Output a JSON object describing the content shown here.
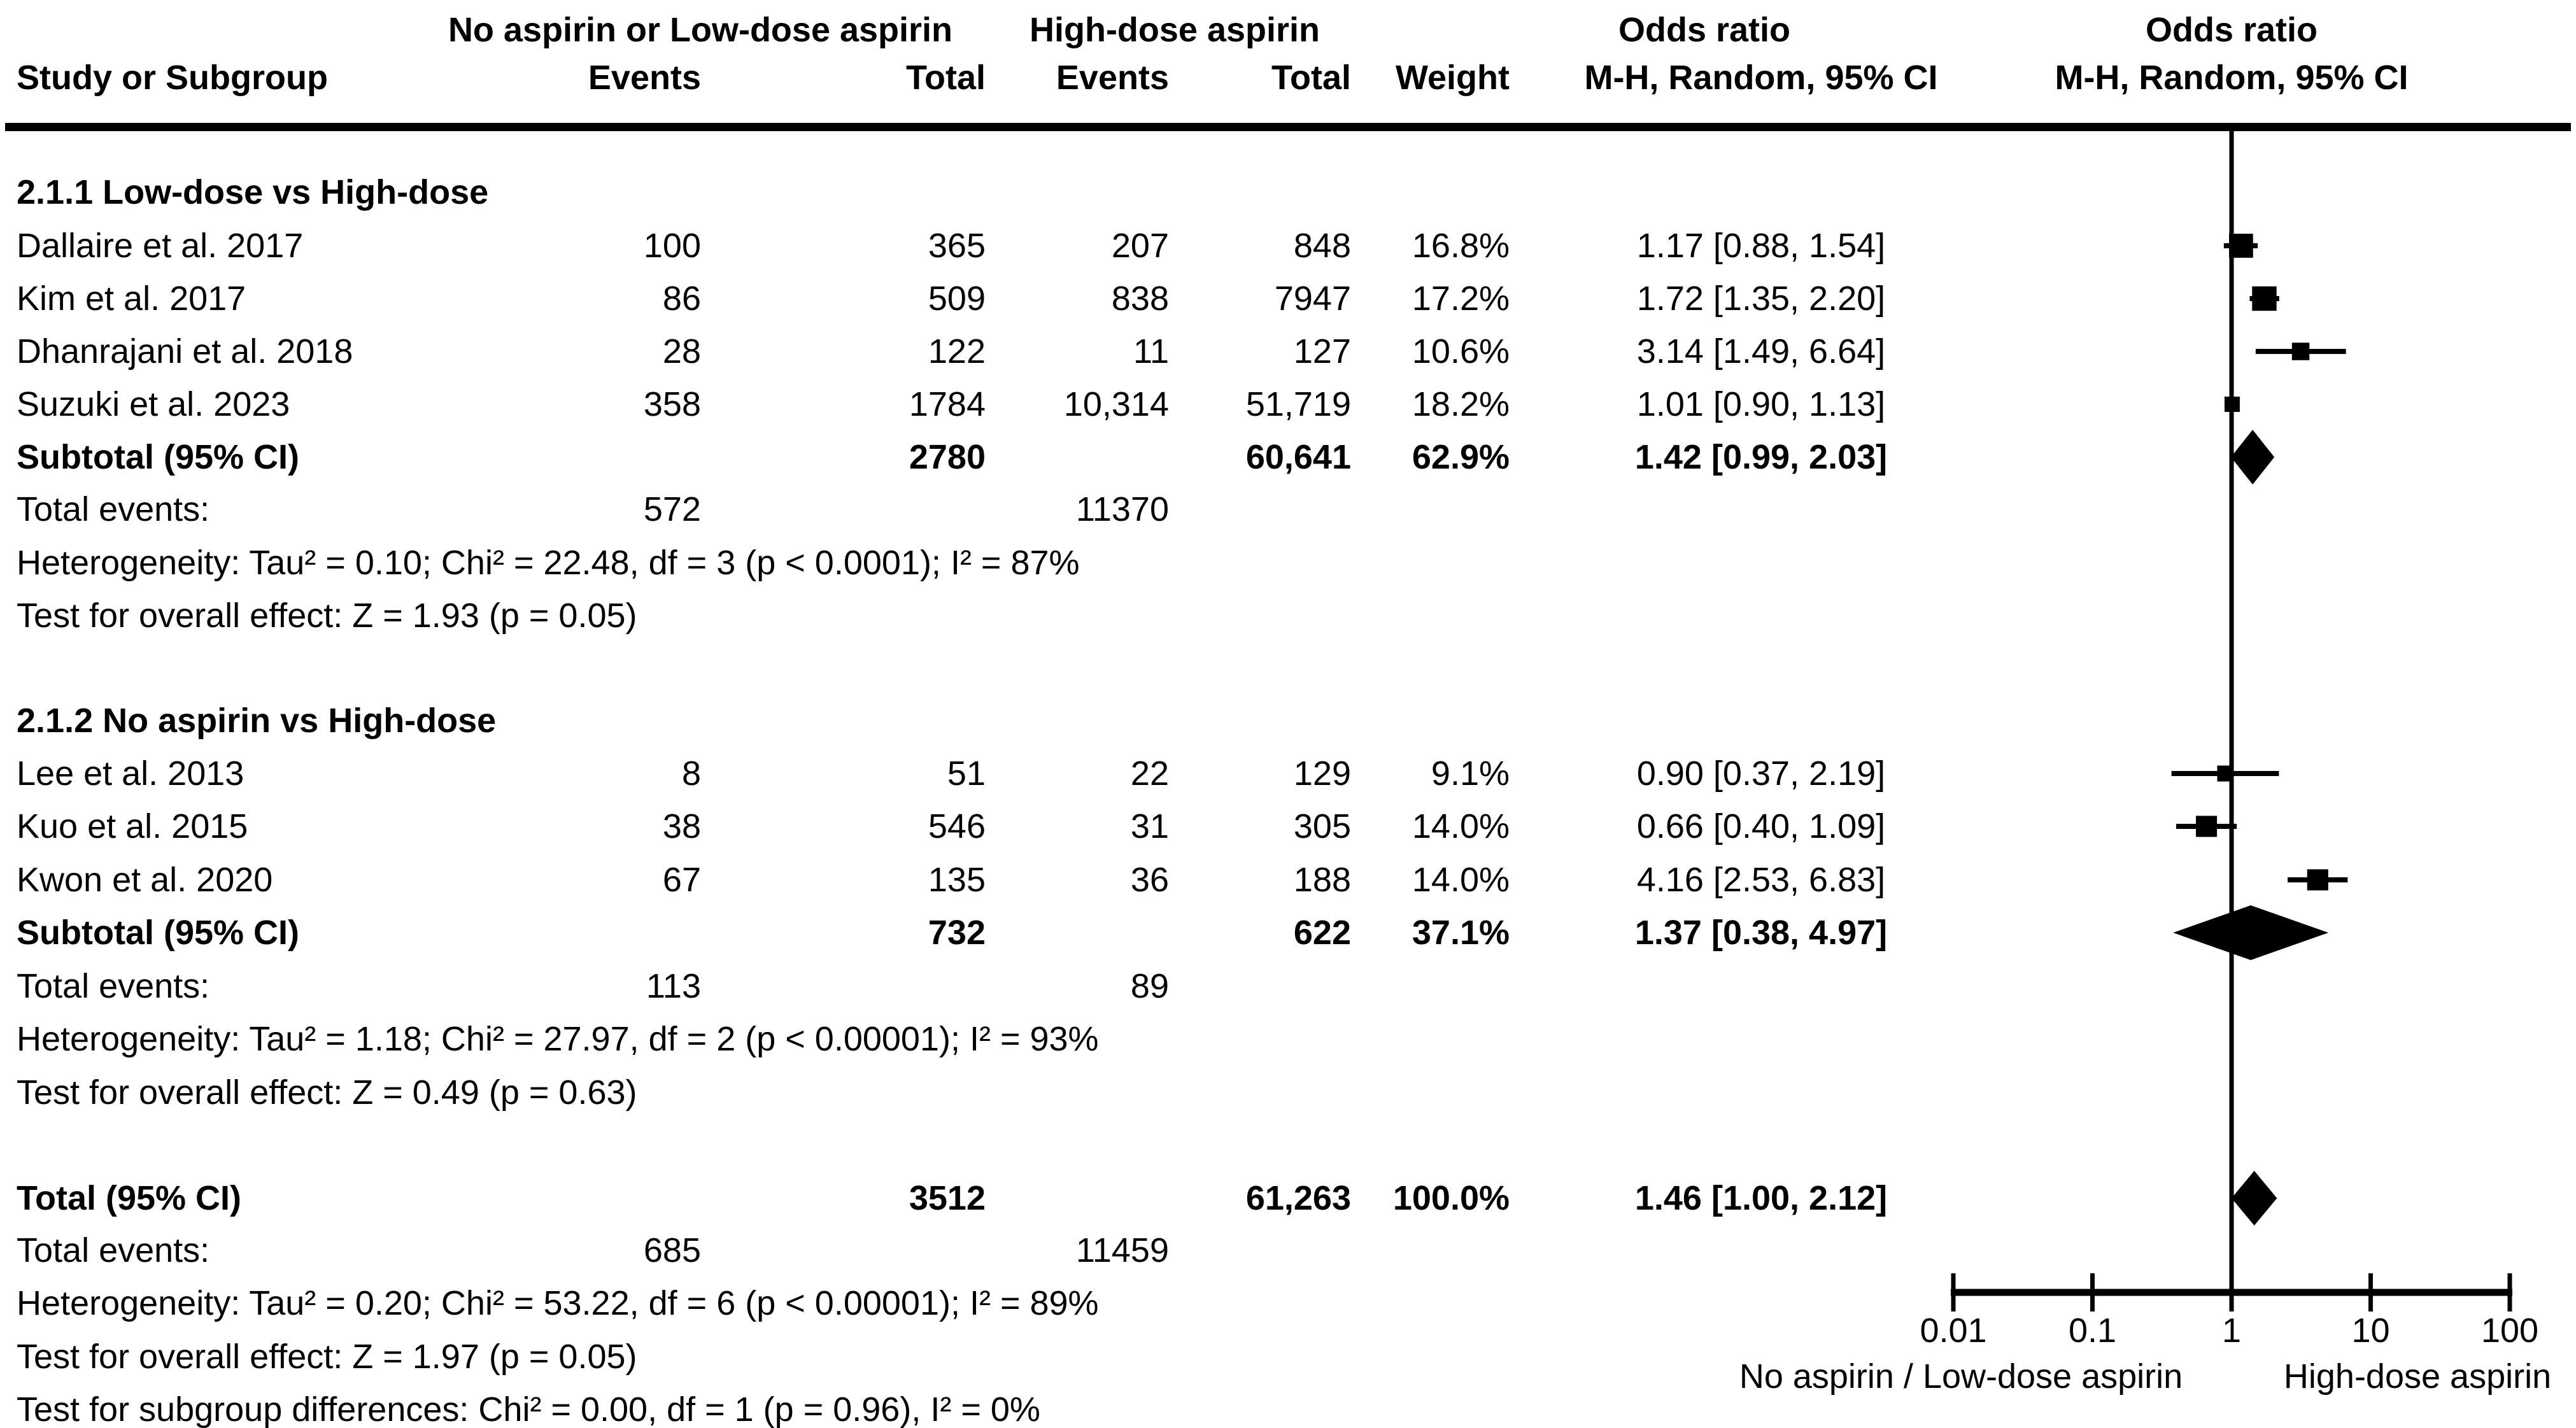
{
  "header": {
    "col_study": "Study or Subgroup",
    "group1": "No aspirin or Low-dose aspirin",
    "group2": "High-dose aspirin",
    "events": "Events",
    "total": "Total",
    "weight": "Weight",
    "or_title": "Odds ratio",
    "or_method": "M-H, Random, 95% CI"
  },
  "colors": {
    "ink": "#000000",
    "background": "#ffffff"
  },
  "chart_data": {
    "type": "forest",
    "effect_measure": "Odds ratio, M-H, Random, 95% CI",
    "x_scale": "log",
    "x_ticks": [
      0.01,
      0.1,
      1,
      10,
      100
    ],
    "x_tick_labels": [
      "0.01",
      "0.1",
      "1",
      "10",
      "100"
    ],
    "left_direction_label": "No aspirin / Low-dose aspirin",
    "right_direction_label": "High-dose aspirin",
    "groups": [
      {
        "title": "2.1.1 Low-dose vs High-dose",
        "studies": [
          {
            "name": "Dallaire et al. 2017",
            "e1": "100",
            "t1": "365",
            "e2": "207",
            "t2": "848",
            "weight_text": "16.8%",
            "or_text": "1.17 [0.88, 1.54]",
            "or": 1.17,
            "lo": 0.88,
            "hi": 1.54,
            "weight": 16.8
          },
          {
            "name": "Kim et al. 2017",
            "e1": "86",
            "t1": "509",
            "e2": "838",
            "t2": "7947",
            "weight_text": "17.2%",
            "or_text": "1.72 [1.35, 2.20]",
            "or": 1.72,
            "lo": 1.35,
            "hi": 2.2,
            "weight": 17.2
          },
          {
            "name": "Dhanrajani et al. 2018",
            "e1": "28",
            "t1": "122",
            "e2": "11",
            "t2": "127",
            "weight_text": "10.6%",
            "or_text": "3.14 [1.49, 6.64]",
            "or": 3.14,
            "lo": 1.49,
            "hi": 6.64,
            "weight": 10.6
          },
          {
            "name": "Suzuki et al. 2023",
            "e1": "358",
            "t1": "1784",
            "e2": "10,314",
            "t2": "51,719",
            "weight_text": "18.2%",
            "or_text": "1.01 [0.90, 1.13]",
            "or": 1.01,
            "lo": 0.9,
            "hi": 1.13,
            "weight": 18.2
          }
        ],
        "subtotal": {
          "label": "Subtotal (95% CI)",
          "t1": "2780",
          "t2": "60,641",
          "weight_text": "62.9%",
          "or_text": "1.42 [0.99, 2.03]",
          "or": 1.42,
          "lo": 0.99,
          "hi": 2.03
        },
        "total_events": {
          "label": "Total events:",
          "e1": "572",
          "e2": "11370"
        },
        "heterogeneity": "Heterogeneity: Tau² = 0.10; Chi² = 22.48, df = 3 (p < 0.0001); I² = 87%",
        "overall_test": "Test for overall effect: Z = 1.93 (p = 0.05)"
      },
      {
        "title": "2.1.2 No aspirin vs High-dose",
        "studies": [
          {
            "name": "Lee et al. 2013",
            "e1": "8",
            "t1": "51",
            "e2": "22",
            "t2": "129",
            "weight_text": "9.1%",
            "or_text": "0.90 [0.37, 2.19]",
            "or": 0.9,
            "lo": 0.37,
            "hi": 2.19,
            "weight": 9.1
          },
          {
            "name": "Kuo et al. 2015",
            "e1": "38",
            "t1": "546",
            "e2": "31",
            "t2": "305",
            "weight_text": "14.0%",
            "or_text": "0.66 [0.40, 1.09]",
            "or": 0.66,
            "lo": 0.4,
            "hi": 1.09,
            "weight": 14.0
          },
          {
            "name": "Kwon et al. 2020",
            "e1": "67",
            "t1": "135",
            "e2": "36",
            "t2": "188",
            "weight_text": "14.0%",
            "or_text": "4.16 [2.53, 6.83]",
            "or": 4.16,
            "lo": 2.53,
            "hi": 6.83,
            "weight": 14.0
          }
        ],
        "subtotal": {
          "label": "Subtotal (95% CI)",
          "t1": "732",
          "t2": "622",
          "weight_text": "37.1%",
          "or_text": "1.37 [0.38, 4.97]",
          "or": 1.37,
          "lo": 0.38,
          "hi": 4.97
        },
        "total_events": {
          "label": "Total events:",
          "e1": "113",
          "e2": "89"
        },
        "heterogeneity": "Heterogeneity: Tau² = 1.18; Chi² = 27.97, df = 2 (p < 0.00001); I² = 93%",
        "overall_test": "Test for overall effect: Z = 0.49 (p = 0.63)"
      }
    ],
    "total": {
      "label": "Total (95% CI)",
      "t1": "3512",
      "t2": "61,263",
      "weight_text": "100.0%",
      "or_text": "1.46 [1.00, 2.12]",
      "or": 1.46,
      "lo": 1.0,
      "hi": 2.12,
      "total_events": {
        "label": "Total events:",
        "e1": "685",
        "e2": "11459"
      },
      "heterogeneity": "Heterogeneity: Tau² = 0.20; Chi² = 53.22, df = 6 (p < 0.00001); I² = 89%",
      "overall_test": "Test for overall effect: Z = 1.97 (p = 0.05)",
      "subgroup_test": "Test for subgroup differences: Chi² = 0.00, df = 1 (p = 0.96), I² = 0%"
    }
  }
}
